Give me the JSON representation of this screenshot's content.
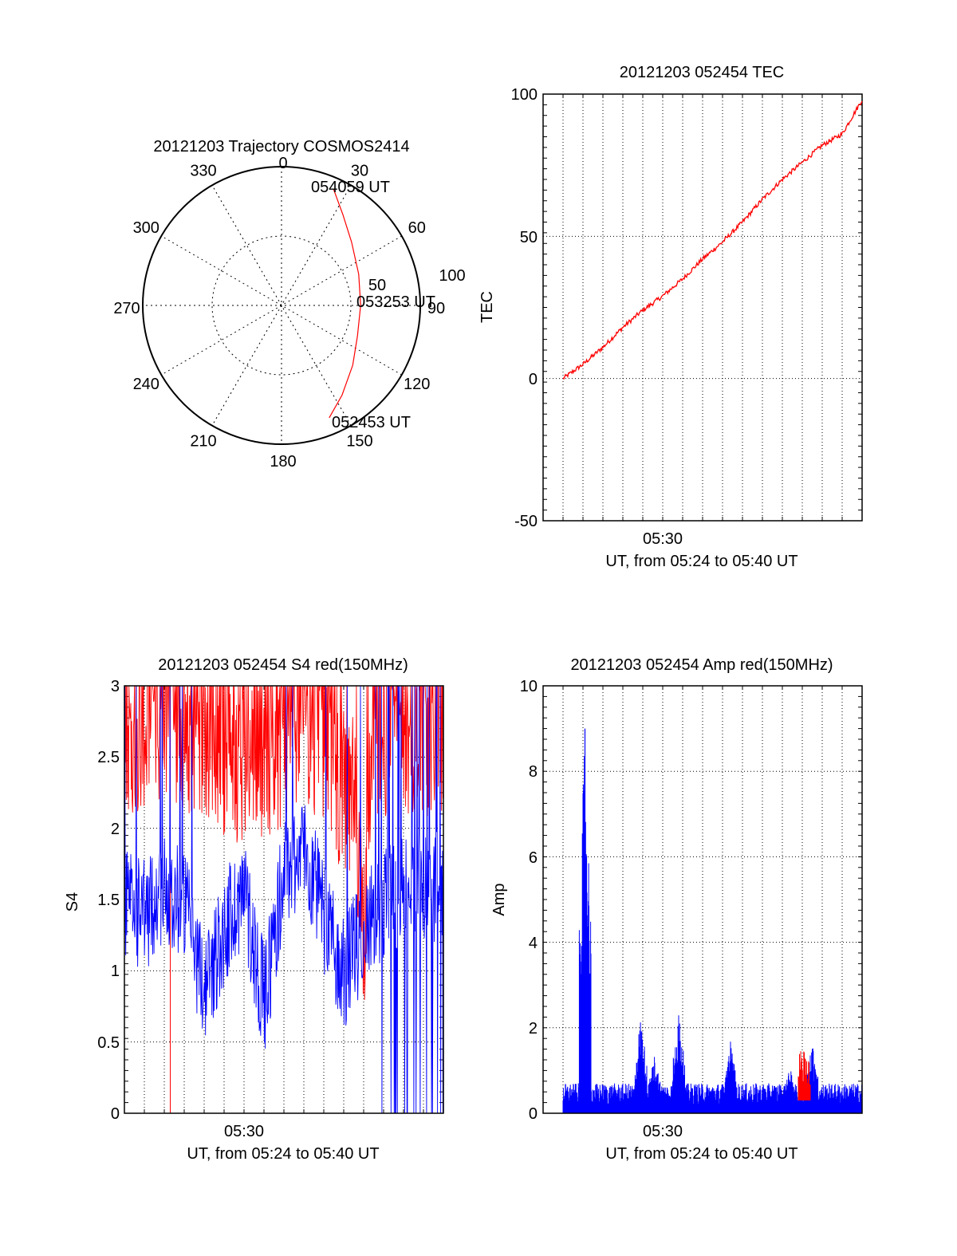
{
  "chart_data": [
    {
      "type": "polar",
      "title": "20121203 Trajectory COSMOS2414",
      "azimuth_labels": [
        "0",
        "30",
        "60",
        "90",
        "120",
        "150",
        "180",
        "210",
        "240",
        "270",
        "300",
        "330"
      ],
      "radial_labels": [
        "50",
        "100"
      ],
      "series": [
        {
          "color": "#ff0000",
          "points": [
            {
              "az": 24,
              "r": 92
            },
            {
              "az": 34,
              "r": 79
            },
            {
              "az": 48,
              "r": 68
            },
            {
              "az": 68,
              "r": 60
            },
            {
              "az": 90,
              "r": 57
            },
            {
              "az": 112,
              "r": 59
            },
            {
              "az": 130,
              "r": 67
            },
            {
              "az": 146,
              "r": 78
            },
            {
              "az": 157,
              "r": 88
            }
          ]
        }
      ],
      "annotations": [
        "054059 UT",
        "053253 UT",
        "052453 UT"
      ],
      "colors": {
        "grid": "#000000",
        "track": "#ff0000"
      }
    },
    {
      "type": "line",
      "title": "20121203 052454 TEC",
      "ylabel": "TEC",
      "xlabel": "UT, from 05:24 to 05:40 UT",
      "x_tick_label": "05:30",
      "ylim": [
        -50,
        100
      ],
      "y_ticks": [
        "100",
        "50",
        "0",
        "-50"
      ],
      "xlim_minutes": [
        0,
        16
      ],
      "grid": true,
      "series": [
        {
          "color": "#ff0000",
          "x_minutes": [
            1,
            2,
            3,
            4,
            5,
            6,
            7,
            8,
            9,
            10,
            11,
            12,
            13,
            14,
            15,
            16
          ],
          "values": [
            0,
            5,
            11,
            18,
            24,
            29,
            35,
            42,
            48,
            55,
            63,
            70,
            76,
            82,
            86,
            98
          ]
        }
      ]
    },
    {
      "type": "line",
      "title": "20121203 052454 S4 red(150MHz)",
      "ylabel": "S4",
      "xlabel": "UT, from 05:24 to 05:40 UT",
      "x_tick_label": "05:30",
      "ylim": [
        0,
        3
      ],
      "y_ticks": [
        "3",
        "2.5",
        "2",
        "1.5",
        "1",
        "0.5",
        "0"
      ],
      "xlim_minutes": [
        0,
        16
      ],
      "grid": true,
      "series": [
        {
          "color": "#ff0000",
          "x_minutes": [
            0,
            2,
            4,
            6,
            8,
            10,
            11.5,
            12,
            12.5,
            14,
            16
          ],
          "values": [
            2.5,
            2.6,
            2.4,
            2.3,
            2.4,
            2.5,
            1.8,
            1.0,
            2.5,
            2.5,
            2.5
          ]
        },
        {
          "color": "#0000ff",
          "x_minutes": [
            0,
            1,
            2,
            3,
            4,
            5,
            6,
            7,
            8,
            9,
            10,
            11,
            12,
            13,
            14,
            15,
            16
          ],
          "values": [
            1.4,
            1.3,
            1.5,
            1.4,
            0.8,
            1.2,
            1.5,
            0.7,
            1.6,
            1.8,
            1.3,
            0.9,
            1.2,
            1.4,
            1.5,
            1.5,
            1.5
          ]
        }
      ]
    },
    {
      "type": "line",
      "title": "20121203 052454 Amp red(150MHz)",
      "ylabel": "Amp",
      "xlabel": "UT, from 05:24 to 05:40 UT",
      "x_tick_label": "05:30",
      "ylim": [
        0,
        10
      ],
      "y_ticks": [
        "10",
        "8",
        "6",
        "4",
        "2",
        "0"
      ],
      "xlim_minutes": [
        0,
        16
      ],
      "grid": true,
      "series": [
        {
          "color": "#ff0000",
          "x_minutes": [
            12.8,
            13,
            13.2,
            13.4
          ],
          "values": [
            0.8,
            1.6,
            1.0,
            0.5
          ]
        },
        {
          "color": "#0000ff",
          "x_minutes": [
            1.5,
            2.1,
            4.9,
            5.6,
            6.8,
            9.4,
            12.4,
            13.5,
            16.0
          ],
          "values": [
            0.6,
            9.0,
            2.3,
            1.4,
            2.4,
            1.7,
            1.1,
            1.7,
            0.4
          ]
        }
      ]
    }
  ]
}
